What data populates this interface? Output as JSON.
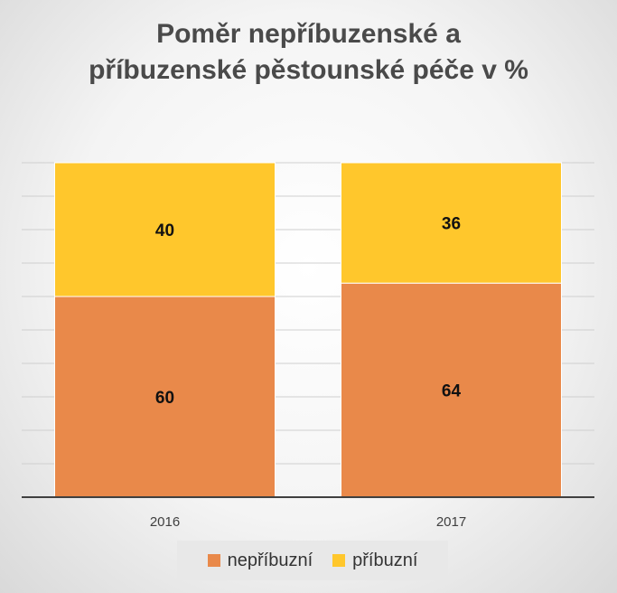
{
  "chart_data": {
    "type": "bar",
    "stacked": true,
    "title_lines": [
      "Poměr nepříbuzenské a",
      "příbuzenské pěstounské péče v %"
    ],
    "categories": [
      "2016",
      "2017"
    ],
    "series": [
      {
        "name": "nepříbuzní",
        "values": [
          60,
          64
        ],
        "color": "#e9894a"
      },
      {
        "name": "příbuzní",
        "values": [
          40,
          36
        ],
        "color": "#ffc72c"
      }
    ],
    "ylim": [
      0,
      100
    ],
    "grid": true,
    "legend_position": "bottom"
  }
}
